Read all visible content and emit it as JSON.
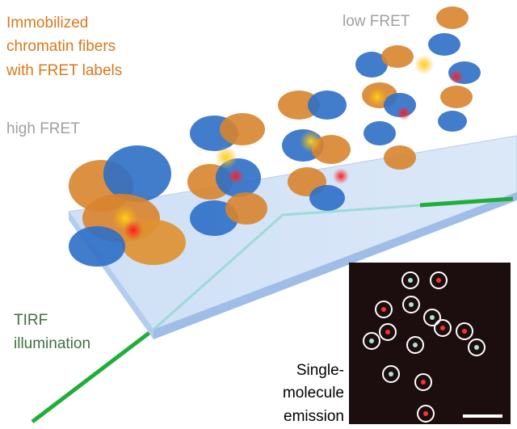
{
  "labels": {
    "sample": [
      "Immobilized",
      "chromatin fibers",
      "with FRET labels"
    ],
    "high_fret": "high FRET",
    "low_fret": "low FRET",
    "illumination": [
      "TIRF",
      "illumination"
    ],
    "emission": [
      "Single-",
      "molecule",
      "emission"
    ]
  }
}
